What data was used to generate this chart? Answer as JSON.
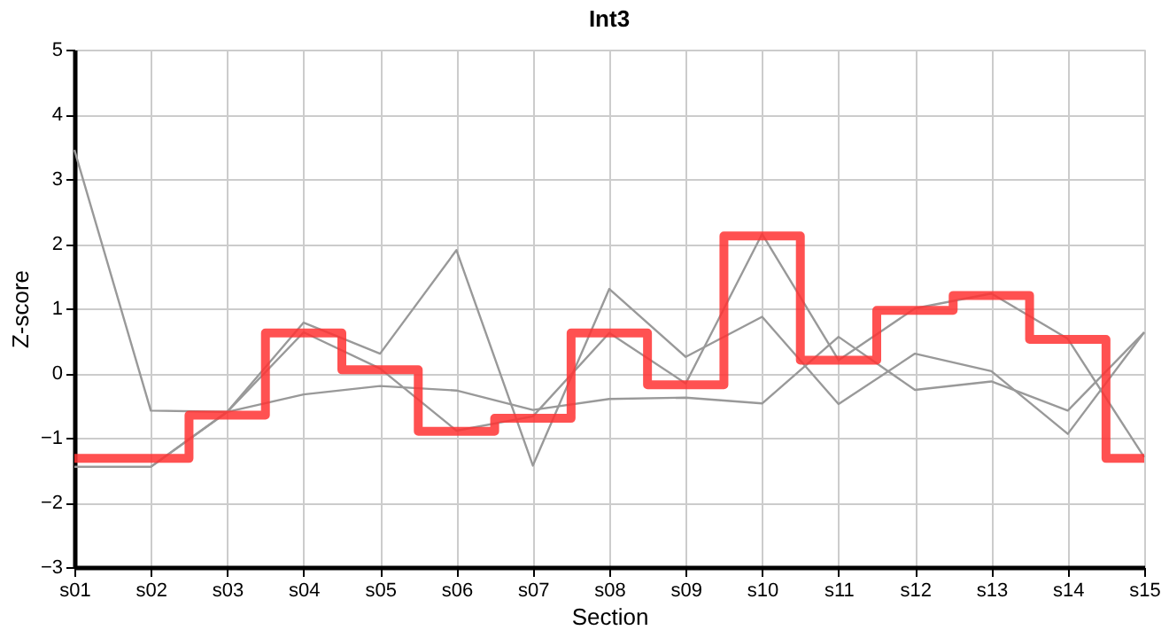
{
  "chart_data": {
    "type": "line",
    "title": "Int3",
    "xlabel": "Section",
    "ylabel": "Z-score",
    "categories": [
      "s01",
      "s02",
      "s03",
      "s04",
      "s05",
      "s06",
      "s07",
      "s08",
      "s09",
      "s10",
      "s11",
      "s12",
      "s13",
      "s14",
      "s15"
    ],
    "ylim": [
      -3,
      5
    ],
    "yticks": [
      -3,
      -2,
      -1,
      0,
      1,
      2,
      3,
      4,
      5
    ],
    "grid": true,
    "legend": false,
    "marker": "none",
    "series": [
      {
        "color": "#999999",
        "values": [
          3.45,
          -0.58,
          -0.6,
          0.78,
          0.3,
          1.9,
          -1.43,
          1.3,
          0.25,
          0.87,
          -0.48,
          0.3,
          0.03,
          -0.94,
          0.63
        ]
      },
      {
        "color": "#999999",
        "values": [
          -1.45,
          -1.45,
          -0.6,
          0.63,
          0.07,
          -0.89,
          -0.67,
          0.62,
          -0.16,
          2.15,
          0.2,
          1.0,
          1.23,
          0.53,
          -1.3
        ]
      },
      {
        "color": "#999999",
        "values": [
          -1.45,
          -1.45,
          -0.6,
          -0.33,
          -0.2,
          -0.27,
          -0.57,
          -0.4,
          -0.38,
          -0.47,
          0.56,
          -0.26,
          -0.13,
          -0.58,
          0.63
        ]
      },
      {
        "type": "step",
        "color": "#ff3333",
        "values": [
          -1.32,
          -1.32,
          -0.65,
          0.62,
          0.05,
          -0.9,
          -0.7,
          0.62,
          -0.18,
          2.12,
          0.2,
          0.97,
          1.2,
          0.52,
          -1.32
        ]
      }
    ]
  }
}
